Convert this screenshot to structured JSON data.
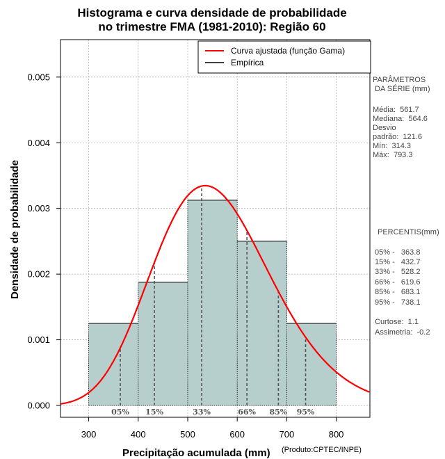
{
  "title_line1": "Histograma e curva densidade de probabilidade",
  "title_line2": "no trimestre FMA (1981-2010): Região 60",
  "credit": "(Produto:CPTEC/INPE)",
  "colors": {
    "bar_fill": "#b6cfcc",
    "curve": "#ff0000",
    "grid": "#b0b0b0",
    "percentile_line": "#555555"
  },
  "chart_data": {
    "type": "bar",
    "title": "Histograma e curva densidade de probabilidade no trimestre FMA (1981-2010): Região 60",
    "xlabel": "Precipitação acumulada (mm)",
    "ylabel": "Densidade de probabilidade",
    "xlim": [
      243,
      868
    ],
    "ylim": [
      -0.00018,
      0.00557
    ],
    "x_ticks": [
      300,
      400,
      500,
      600,
      700,
      800
    ],
    "y_ticks": [
      0.0,
      0.001,
      0.002,
      0.003,
      0.004,
      0.005
    ],
    "y_tick_labels": [
      "0.000",
      "0.001",
      "0.002",
      "0.003",
      "0.004",
      "0.005"
    ],
    "bins": [
      {
        "from": 300,
        "to": 400,
        "density": 0.00125
      },
      {
        "from": 400,
        "to": 500,
        "density": 0.001875
      },
      {
        "from": 500,
        "to": 600,
        "density": 0.003125
      },
      {
        "from": 600,
        "to": 700,
        "density": 0.0025
      },
      {
        "from": 700,
        "to": 800,
        "density": 0.00125
      }
    ],
    "fitted_curve": {
      "name": "Curva ajustada (função Gama)",
      "distribution": "gamma",
      "mean": 561.7,
      "sd": 121.6
    },
    "legend": [
      {
        "label": "Curva ajustada (função Gama)",
        "color": "#ff0000"
      },
      {
        "label": "Empírica",
        "color": "#000000"
      }
    ],
    "legend_position": "top-right",
    "percentiles": [
      {
        "label": "05%",
        "value": 363.8
      },
      {
        "label": "15%",
        "value": 432.7
      },
      {
        "label": "33%",
        "value": 528.2
      },
      {
        "label": "66%",
        "value": 619.6
      },
      {
        "label": "85%",
        "value": 683.1
      },
      {
        "label": "95%",
        "value": 738.1
      }
    ]
  },
  "stats_panel": {
    "params_title_1": "PARÂMETROS",
    "params_title_2": " DA SÉRIE (mm)",
    "lines": [
      "Média:  561.7",
      "Mediana:  564.6",
      "Desvio",
      "padrão:  121.6",
      "Mín:  314.3",
      "Máx:  793.3"
    ],
    "percentis_title": "PERCENTIS(mm)",
    "percentis_lines": [
      "05% -   363.8",
      "15% -   432.7",
      "33% -   528.2",
      "66% -   619.6",
      "85% -   683.1",
      "95% -   738.1"
    ],
    "curtose": "Curtose:  1.1",
    "assimetria": "Assimetria:  -0.2"
  }
}
